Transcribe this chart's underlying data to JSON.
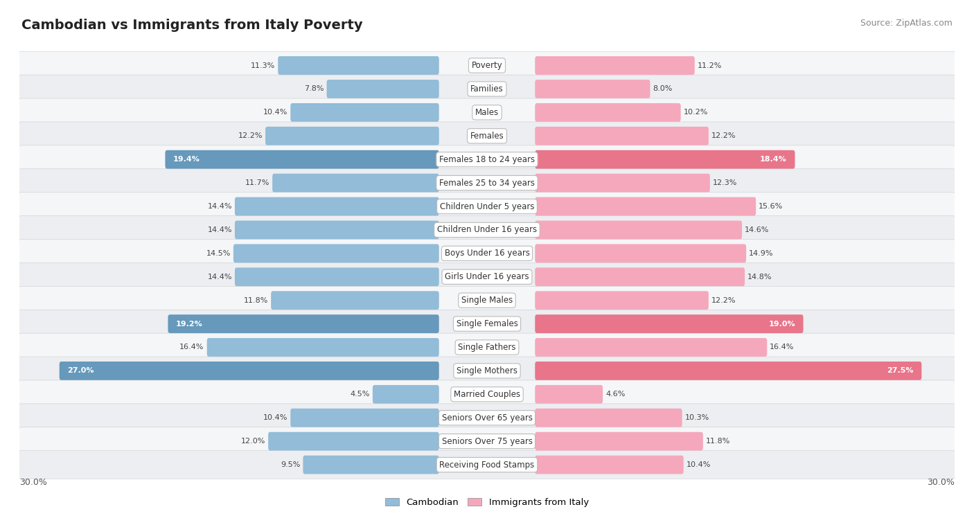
{
  "title": "Cambodian vs Immigrants from Italy Poverty",
  "source": "Source: ZipAtlas.com",
  "categories": [
    "Poverty",
    "Families",
    "Males",
    "Females",
    "Females 18 to 24 years",
    "Females 25 to 34 years",
    "Children Under 5 years",
    "Children Under 16 years",
    "Boys Under 16 years",
    "Girls Under 16 years",
    "Single Males",
    "Single Females",
    "Single Fathers",
    "Single Mothers",
    "Married Couples",
    "Seniors Over 65 years",
    "Seniors Over 75 years",
    "Receiving Food Stamps"
  ],
  "cambodian": [
    11.3,
    7.8,
    10.4,
    12.2,
    19.4,
    11.7,
    14.4,
    14.4,
    14.5,
    14.4,
    11.8,
    19.2,
    16.4,
    27.0,
    4.5,
    10.4,
    12.0,
    9.5
  ],
  "italy": [
    11.2,
    8.0,
    10.2,
    12.2,
    18.4,
    12.3,
    15.6,
    14.6,
    14.9,
    14.8,
    12.2,
    19.0,
    16.4,
    27.5,
    4.6,
    10.3,
    11.8,
    10.4
  ],
  "cambodian_color_normal": "#92bcd8",
  "cambodian_color_highlight": "#6699bb",
  "italy_color_normal": "#f5a8bc",
  "italy_color_highlight": "#e8758a",
  "highlighted_indices": [
    4,
    11,
    13
  ],
  "xlim": 30.0,
  "legend_cambodian": "Cambodian",
  "legend_italy": "Immigrants from Italy",
  "row_bg_even": "#f0f2f5",
  "row_bg_odd": "#e8eaed",
  "title_fontsize": 14,
  "source_fontsize": 9,
  "label_fontsize": 8.5,
  "value_fontsize": 8
}
